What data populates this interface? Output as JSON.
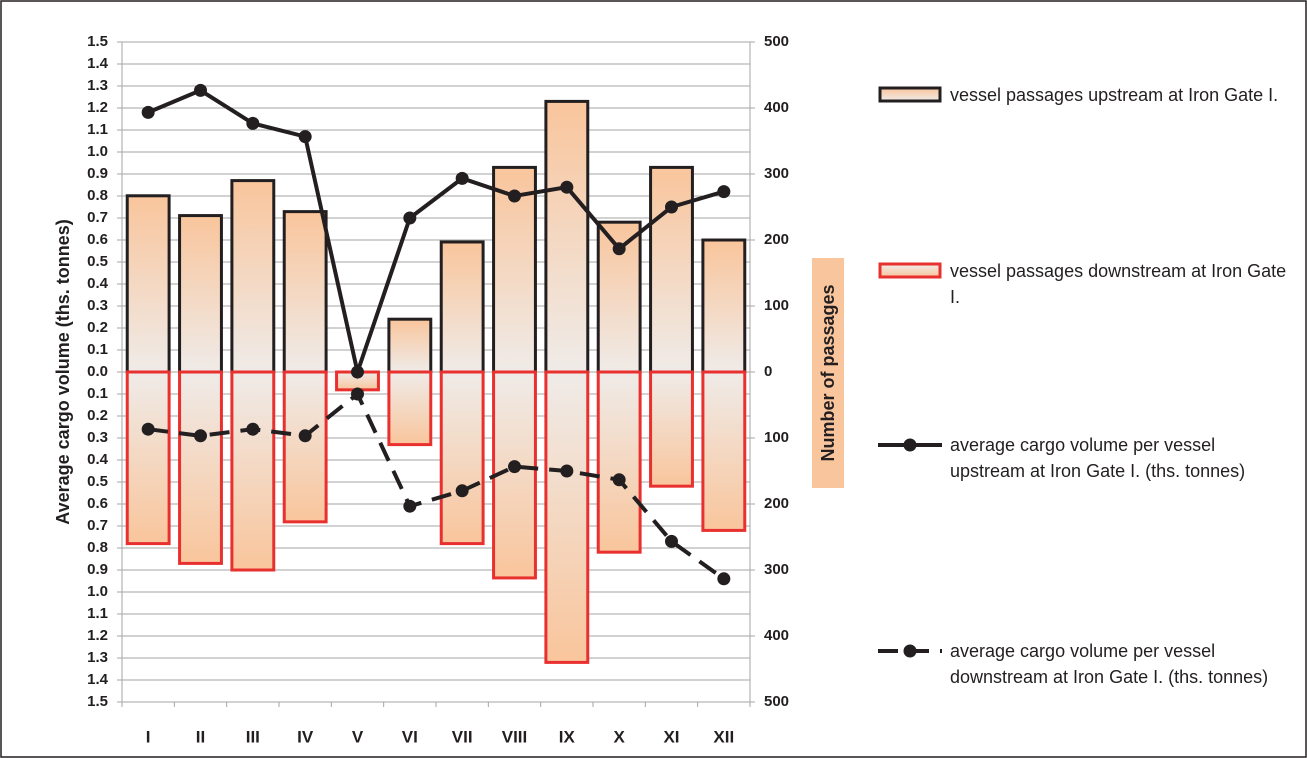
{
  "chart_data": {
    "type": "bar",
    "categories": [
      "I",
      "II",
      "III",
      "IV",
      "V",
      "VI",
      "VII",
      "VIII",
      "IX",
      "X",
      "XI",
      "XII"
    ],
    "y_label": "Average cargo volume (ths. tonnes)",
    "y2_label": "Number of passages",
    "ylim": [
      -1.5,
      1.5
    ],
    "yticks": [
      1.5,
      1.4,
      1.3,
      1.2,
      1.1,
      {
        "value": 1,
        "label": "1.0"
      },
      0.9,
      0.8,
      0.7,
      0.6,
      0.5,
      0.4,
      0.3,
      0.2,
      0.1,
      {
        "value": 0,
        "label": "0.0"
      },
      {
        "value": -0.1,
        "label": "0.1"
      },
      {
        "value": -0.2,
        "label": "0.2"
      },
      {
        "value": -0.3,
        "label": "0.3"
      },
      {
        "value": -0.4,
        "label": "0.4"
      },
      {
        "value": -0.5,
        "label": "0.5"
      },
      {
        "value": -0.6,
        "label": "0.6"
      },
      {
        "value": -0.7,
        "label": "0.7"
      },
      {
        "value": -0.8,
        "label": "0.8"
      },
      {
        "value": -0.9,
        "label": "0.9"
      },
      {
        "value": -1,
        "label": "1.0"
      },
      {
        "value": -1.1,
        "label": "1.1"
      },
      {
        "value": -1.2,
        "label": "1.2"
      },
      {
        "value": -1.3,
        "label": "1.3"
      },
      {
        "value": -1.4,
        "label": "1.4"
      },
      {
        "value": -1.5,
        "label": "1.5"
      }
    ],
    "y2lim": [
      -500,
      500
    ],
    "y2ticks": [
      500,
      400,
      300,
      200,
      100,
      0,
      {
        "value": -100,
        "label": "100"
      },
      {
        "value": -200,
        "label": "200"
      },
      {
        "value": -300,
        "label": "300"
      },
      {
        "value": -400,
        "label": "400"
      },
      {
        "value": -500,
        "label": "500"
      }
    ],
    "negative_tick_color": "#e8302f",
    "grid": true,
    "legend": "right",
    "series": [
      {
        "name": "vessel passages upstream at Iron Gate I.",
        "type": "bar",
        "axis": "y2",
        "color": "#231f20",
        "values": [
          267,
          237,
          290,
          243,
          0,
          80,
          197,
          310,
          410,
          227,
          310,
          200
        ]
      },
      {
        "name": "vessel passages downstream at Iron Gate I.",
        "type": "bar",
        "axis": "y2",
        "color": "#e8302f",
        "values": [
          -260,
          -290,
          -300,
          -227,
          -27,
          -110,
          -260,
          -312,
          -440,
          -273,
          -173,
          -240
        ]
      },
      {
        "name": "average cargo volume per vessel upstream at Iron Gate I.  (ths. tonnes)",
        "type": "line",
        "style": "solid",
        "color": "#231f20",
        "values": [
          1.18,
          1.28,
          1.13,
          1.07,
          0.0,
          0.7,
          0.88,
          0.8,
          0.84,
          0.56,
          0.75,
          0.82
        ]
      },
      {
        "name": "average cargo volume per vessel downstream at Iron Gate I.  (ths. tonnes)",
        "type": "line",
        "style": "dashed",
        "color": "#231f20",
        "values": [
          -0.26,
          -0.29,
          -0.26,
          -0.29,
          -0.1,
          -0.61,
          -0.54,
          -0.43,
          -0.45,
          -0.49,
          -0.77,
          -0.94
        ]
      }
    ]
  }
}
